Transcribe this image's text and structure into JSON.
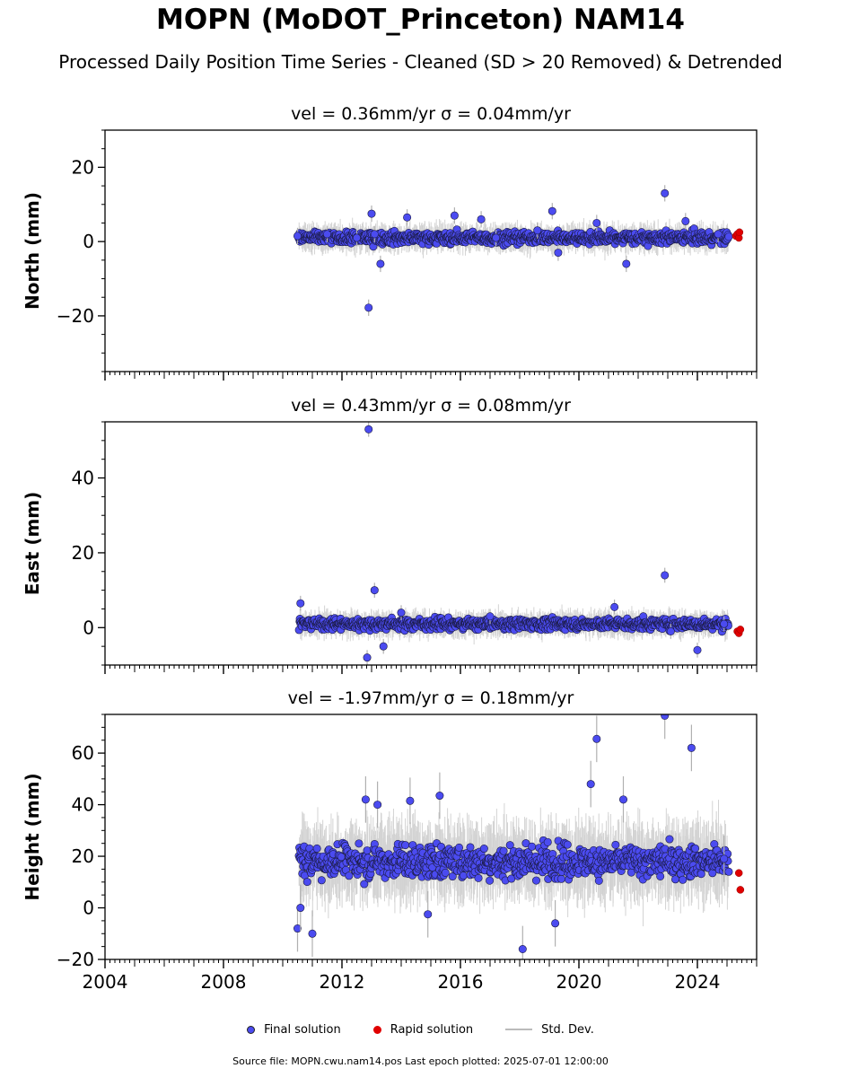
{
  "title": "MOPN (MoDOT_Princeton) NAM14",
  "subtitle": "Processed Daily Position Time Series - Cleaned (SD > 20 Removed) & Detrended",
  "legend": {
    "final": "Final solution",
    "rapid": "Rapid solution",
    "std": "Std. Dev."
  },
  "footer": "Source file: MOPN.cwu.nam14.pos  Last epoch plotted: 2025-07-01 12:00:00",
  "colors": {
    "final": "#4b4bf0",
    "rapid": "#e00000",
    "std": "#b0b0b0",
    "edge": "#1a1a40"
  },
  "chart_data": [
    {
      "type": "scatter",
      "panel": "north",
      "title": "vel = 0.36mm/yr   σ = 0.04mm/yr",
      "ylabel": "North (mm)",
      "ylim": [
        -35,
        30
      ],
      "xlim": [
        2004.0,
        2026.0
      ],
      "yticks": [
        -20,
        0,
        20
      ],
      "ytick_labels": [
        "−20",
        "0",
        "20"
      ],
      "xticks": [
        2004,
        2008,
        2012,
        2016,
        2020,
        2024
      ],
      "xtick_labels": [
        "",
        "",
        "",
        "",
        "",
        ""
      ],
      "band_center": 1.0,
      "band_spread": 2.2,
      "series": [
        {
          "name": "Final solution",
          "kind": "final",
          "x": [
            2010.5,
            2011.5,
            2012.5,
            2012.9,
            2013.0,
            2013.1,
            2013.3,
            2014.2,
            2015.8,
            2016.7,
            2017.2,
            2018.6,
            2019.1,
            2019.3,
            2020.6,
            2021.6,
            2022.9,
            2023.6,
            2024.7
          ],
          "y": [
            1.5,
            2.0,
            1.0,
            -17.8,
            7.5,
            2.0,
            -6.0,
            6.5,
            7.0,
            6.0,
            1.0,
            3.0,
            8.2,
            -3.0,
            5.0,
            -6.0,
            13.0,
            5.5,
            2.0
          ]
        },
        {
          "name": "Rapid solution",
          "kind": "rapid",
          "x": [
            2025.3,
            2025.35,
            2025.4,
            2025.42
          ],
          "y": [
            1.5,
            2.0,
            1.0,
            2.5
          ]
        }
      ]
    },
    {
      "type": "scatter",
      "panel": "east",
      "title": "vel = 0.43mm/yr   σ = 0.08mm/yr",
      "ylabel": "East (mm)",
      "ylim": [
        -10,
        55
      ],
      "xlim": [
        2004.0,
        2026.0
      ],
      "yticks": [
        0,
        20,
        40
      ],
      "ytick_labels": [
        "0",
        "20",
        "40"
      ],
      "xticks": [
        2004,
        2008,
        2012,
        2016,
        2020,
        2024
      ],
      "xtick_labels": [
        "",
        "",
        "",
        "",
        "",
        ""
      ],
      "band_center": 1.0,
      "band_spread": 2.0,
      "series": [
        {
          "name": "Final solution",
          "kind": "final",
          "x": [
            2010.6,
            2012.9,
            2013.1,
            2012.85,
            2013.4,
            2014.0,
            2017.0,
            2021.2,
            2022.9,
            2023.1,
            2024.0,
            2024.9
          ],
          "y": [
            6.5,
            53.0,
            10.0,
            -8.0,
            -5.0,
            4.0,
            3.0,
            5.5,
            14.0,
            -1.0,
            -6.0,
            1.0
          ]
        },
        {
          "name": "Rapid solution",
          "kind": "rapid",
          "x": [
            2025.35,
            2025.4,
            2025.45
          ],
          "y": [
            -1.0,
            -1.5,
            -0.5
          ]
        }
      ]
    },
    {
      "type": "scatter",
      "panel": "height",
      "title": "vel = -1.97mm/yr   σ = 0.18mm/yr",
      "ylabel": "Height (mm)",
      "ylim": [
        -20,
        75
      ],
      "xlim": [
        2004.0,
        2026.0
      ],
      "yticks": [
        -20,
        0,
        20,
        40,
        60
      ],
      "ytick_labels": [
        "−20",
        "0",
        "20",
        "40",
        "60"
      ],
      "xticks": [
        2004,
        2008,
        2012,
        2016,
        2020,
        2024
      ],
      "xtick_labels": [
        "2004",
        "2008",
        "2012",
        "2016",
        "2020",
        "2024"
      ],
      "band_center": 18.0,
      "band_spread": 9.0,
      "series": [
        {
          "name": "Final solution",
          "kind": "final",
          "x": [
            2010.5,
            2010.6,
            2011.0,
            2012.8,
            2013.2,
            2014.3,
            2014.9,
            2015.3,
            2018.1,
            2019.2,
            2020.4,
            2020.6,
            2021.5,
            2022.9,
            2023.8,
            2024.9
          ],
          "y": [
            -8.0,
            0.0,
            -10.0,
            42.0,
            40.0,
            41.5,
            -2.5,
            43.5,
            -16.0,
            -6.0,
            48.0,
            65.5,
            42.0,
            74.5,
            62.0,
            19.0
          ]
        },
        {
          "name": "Rapid solution",
          "kind": "rapid",
          "x": [
            2025.4,
            2025.45
          ],
          "y": [
            13.5,
            7.0
          ]
        }
      ]
    }
  ]
}
